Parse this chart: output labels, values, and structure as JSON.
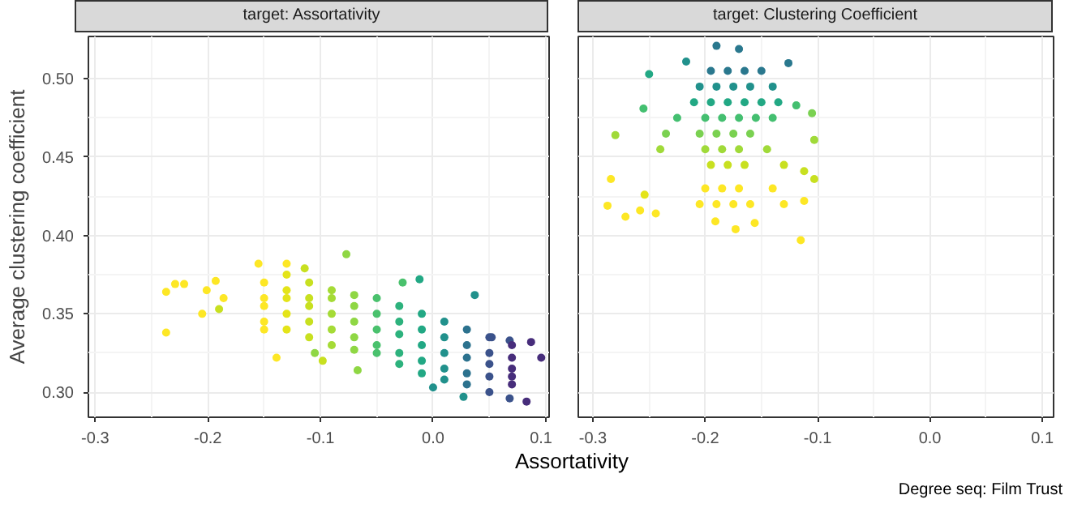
{
  "chart_data": [
    {
      "type": "scatter",
      "title": "target: Assortativity",
      "xlabel": "Assortativity",
      "ylabel": "Average clustering coefficient",
      "marker": "circle",
      "grid": true,
      "xlim": [
        -0.306,
        0.103
      ],
      "ylim": [
        0.284,
        0.527
      ],
      "xticks": [
        -0.3,
        -0.2,
        -0.1,
        {
          "value": 0,
          "label": "0.0"
        },
        0.1
      ],
      "yticks": [
        {
          "value": 0.3,
          "label": "0.30"
        },
        {
          "value": 0.35,
          "label": "0.35"
        },
        {
          "value": 0.4,
          "label": "0.40"
        },
        {
          "value": 0.45,
          "label": "0.45"
        },
        {
          "value": 0.5,
          "label": "0.50"
        }
      ],
      "x": [
        -0.237,
        -0.229,
        -0.221,
        -0.237,
        -0.201,
        -0.193,
        -0.205,
        -0.186,
        -0.19,
        -0.155,
        -0.13,
        -0.139,
        -0.114,
        -0.077,
        -0.012,
        0.037,
        -0.027,
        0.087,
        0.096,
        0.083,
        0.068,
        0.027,
        0.0,
        -0.098,
        -0.105,
        -0.067,
        0.068,
        0.052,
        -0.15,
        -0.15,
        -0.15,
        -0.15,
        -0.15,
        -0.13,
        -0.13,
        -0.13,
        -0.13,
        -0.13,
        -0.11,
        -0.11,
        -0.11,
        -0.11,
        -0.11,
        -0.09,
        -0.09,
        -0.09,
        -0.09,
        -0.09,
        -0.07,
        -0.07,
        -0.07,
        -0.07,
        -0.07,
        -0.05,
        -0.05,
        -0.05,
        -0.05,
        -0.05,
        -0.03,
        -0.03,
        -0.03,
        -0.03,
        -0.03,
        -0.01,
        -0.01,
        -0.01,
        -0.01,
        -0.01,
        0.01,
        0.01,
        0.01,
        0.01,
        0.01,
        0.03,
        0.03,
        0.03,
        0.03,
        0.03,
        0.05,
        0.05,
        0.05,
        0.05,
        0.05,
        0.07,
        0.07,
        0.07,
        0.07,
        0.07
      ],
      "values": [
        0.364,
        0.369,
        0.369,
        0.338,
        0.365,
        0.371,
        0.35,
        0.36,
        0.353,
        0.382,
        0.382,
        0.322,
        0.379,
        0.388,
        0.372,
        0.362,
        0.37,
        0.332,
        0.322,
        0.294,
        0.296,
        0.297,
        0.303,
        0.32,
        0.325,
        0.314,
        0.333,
        0.335,
        0.355,
        0.36,
        0.37,
        0.345,
        0.34,
        0.35,
        0.36,
        0.365,
        0.34,
        0.375,
        0.345,
        0.355,
        0.36,
        0.37,
        0.335,
        0.34,
        0.35,
        0.36,
        0.365,
        0.33,
        0.335,
        0.345,
        0.355,
        0.362,
        0.327,
        0.33,
        0.34,
        0.35,
        0.36,
        0.325,
        0.325,
        0.337,
        0.345,
        0.355,
        0.318,
        0.32,
        0.33,
        0.34,
        0.35,
        0.312,
        0.315,
        0.325,
        0.335,
        0.345,
        0.308,
        0.312,
        0.322,
        0.33,
        0.34,
        0.305,
        0.31,
        0.318,
        0.325,
        0.335,
        0.3,
        0.31,
        0.315,
        0.322,
        0.33,
        0.305
      ],
      "colors": [
        "#fde725",
        "#fde725",
        "#fde725",
        "#fde725",
        "#fde725",
        "#fde725",
        "#fde725",
        "#fde725",
        "#c8e020",
        "#fde725",
        "#fde725",
        "#fde725",
        "#c8e020",
        "#8fd744",
        "#22a884",
        "#21918c",
        "#4ac16d",
        "#472d7b",
        "#472d7b",
        "#472d7b",
        "#3b528b",
        "#21918c",
        "#21918c",
        "#c8e020",
        "#8fd744",
        "#8fd744",
        "#3b528b",
        "#3b528b",
        "#fde725",
        "#fde725",
        "#fde725",
        "#fde725",
        "#fde725",
        "#e4e419",
        "#e4e419",
        "#e4e419",
        "#e4e419",
        "#e4e419",
        "#c8e020",
        "#c8e020",
        "#c8e020",
        "#c8e020",
        "#c8e020",
        "#a5db36",
        "#a5db36",
        "#a5db36",
        "#a5db36",
        "#a5db36",
        "#8fd744",
        "#8fd744",
        "#8fd744",
        "#8fd744",
        "#8fd744",
        "#4ac16d",
        "#4ac16d",
        "#4ac16d",
        "#4ac16d",
        "#4ac16d",
        "#2db27d",
        "#2db27d",
        "#2db27d",
        "#2db27d",
        "#2db27d",
        "#22a884",
        "#22a884",
        "#22a884",
        "#22a884",
        "#22a884",
        "#21918c",
        "#21918c",
        "#21918c",
        "#21918c",
        "#21918c",
        "#2c728e",
        "#2c728e",
        "#2c728e",
        "#2c728e",
        "#2c728e",
        "#3b528b",
        "#3b528b",
        "#3b528b",
        "#3b528b",
        "#3b528b",
        "#472d7b",
        "#472d7b",
        "#472d7b",
        "#472d7b",
        "#472d7b"
      ]
    },
    {
      "type": "scatter",
      "title": "target: Clustering Coefficient",
      "marker": "circle",
      "grid": true,
      "tick_labels": "x",
      "annotations": [
        "Degree seq: Film Trust"
      ],
      "xlim": [
        -0.313,
        0.11
      ],
      "ylim": [
        0.284,
        0.527
      ],
      "xticks": [
        -0.3,
        -0.2,
        -0.1,
        {
          "value": 0,
          "label": "0.0"
        },
        0.1
      ],
      "yticks": [
        {
          "value": 0.3,
          "label": null
        },
        {
          "value": 0.35,
          "label": null
        },
        {
          "value": 0.4,
          "label": null
        },
        {
          "value": 0.45,
          "label": null
        },
        {
          "value": 0.5,
          "label": null
        }
      ],
      "x": [
        -0.28,
        -0.284,
        -0.287,
        -0.271,
        -0.258,
        -0.244,
        -0.254,
        -0.115,
        -0.173,
        -0.103,
        -0.103,
        -0.105,
        -0.126,
        -0.19,
        -0.17,
        -0.25,
        -0.255,
        -0.217,
        -0.119,
        -0.112,
        -0.112,
        -0.156,
        -0.191,
        -0.195,
        -0.18,
        -0.165,
        -0.15,
        -0.205,
        -0.19,
        -0.175,
        -0.16,
        -0.14,
        -0.21,
        -0.195,
        -0.18,
        -0.165,
        -0.15,
        -0.135,
        -0.2,
        -0.185,
        -0.17,
        -0.155,
        -0.14,
        -0.225,
        -0.205,
        -0.19,
        -0.175,
        -0.16,
        -0.235,
        -0.2,
        -0.185,
        -0.17,
        -0.145,
        -0.24,
        -0.195,
        -0.18,
        -0.165,
        -0.13,
        -0.2,
        -0.185,
        -0.17,
        -0.14,
        -0.205,
        -0.19,
        -0.175,
        -0.16,
        -0.13
      ],
      "values": [
        0.464,
        0.436,
        0.419,
        0.412,
        0.416,
        0.414,
        0.426,
        0.397,
        0.404,
        0.436,
        0.461,
        0.478,
        0.51,
        0.521,
        0.519,
        0.503,
        0.481,
        0.511,
        0.483,
        0.441,
        0.422,
        0.408,
        0.409,
        0.505,
        0.505,
        0.505,
        0.505,
        0.495,
        0.495,
        0.495,
        0.495,
        0.495,
        0.485,
        0.485,
        0.485,
        0.485,
        0.485,
        0.485,
        0.475,
        0.475,
        0.475,
        0.475,
        0.475,
        0.475,
        0.465,
        0.465,
        0.465,
        0.465,
        0.465,
        0.455,
        0.455,
        0.455,
        0.455,
        0.455,
        0.445,
        0.445,
        0.445,
        0.445,
        0.43,
        0.43,
        0.43,
        0.43,
        0.42,
        0.42,
        0.42,
        0.42,
        0.42
      ],
      "colors": [
        "#a0da39",
        "#fde725",
        "#fde725",
        "#fde725",
        "#fde725",
        "#fde725",
        "#e4e419",
        "#fde725",
        "#fde725",
        "#c8e020",
        "#a0da39",
        "#7ad151",
        "#2a788e",
        "#2a788e",
        "#2a788e",
        "#22a884",
        "#44bf70",
        "#21918c",
        "#44bf70",
        "#c8e020",
        "#fde725",
        "#fde725",
        "#fde725",
        "#2a788e",
        "#2a788e",
        "#2a788e",
        "#2a788e",
        "#21918c",
        "#21918c",
        "#21918c",
        "#21918c",
        "#21918c",
        "#22a884",
        "#22a884",
        "#22a884",
        "#22a884",
        "#22a884",
        "#22a884",
        "#44bf70",
        "#44bf70",
        "#44bf70",
        "#44bf70",
        "#44bf70",
        "#44bf70",
        "#7ad151",
        "#7ad151",
        "#7ad151",
        "#7ad151",
        "#7ad151",
        "#a0da39",
        "#a0da39",
        "#a0da39",
        "#a0da39",
        "#a0da39",
        "#c8e020",
        "#c8e020",
        "#c8e020",
        "#c8e020",
        "#fde725",
        "#fde725",
        "#fde725",
        "#fde725",
        "#fde725",
        "#fde725",
        "#fde725",
        "#fde725",
        "#fde725"
      ]
    }
  ]
}
